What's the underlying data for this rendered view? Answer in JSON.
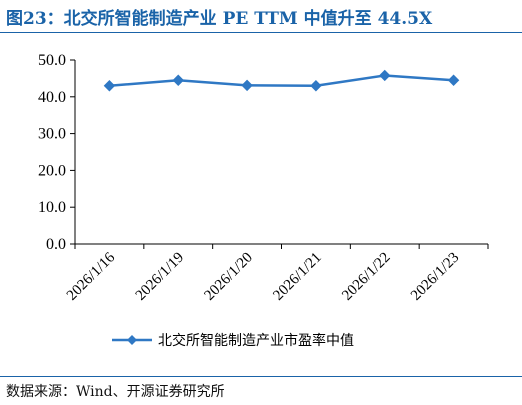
{
  "header": {
    "title": "图23：北交所智能制造产业 PE TTM 中值升至 44.5X"
  },
  "footer": {
    "source": "数据来源：Wind、开源证券研究所"
  },
  "colors": {
    "accent": "#1a63a8",
    "series": "#2f78c4"
  },
  "chart_data": {
    "type": "line",
    "categories": [
      "2026/1/16",
      "2026/1/19",
      "2026/1/20",
      "2026/1/21",
      "2026/1/22",
      "2026/1/23"
    ],
    "series": [
      {
        "name": "北交所智能制造产业市盈率中值",
        "values": [
          43.0,
          44.5,
          43.1,
          43.0,
          45.8,
          44.5
        ]
      }
    ],
    "yticks": [
      "0.0",
      "10.0",
      "20.0",
      "30.0",
      "40.0",
      "50.0"
    ],
    "ylim": [
      0,
      50
    ],
    "grid": false,
    "legend": "bottom",
    "marker": "diamond"
  }
}
